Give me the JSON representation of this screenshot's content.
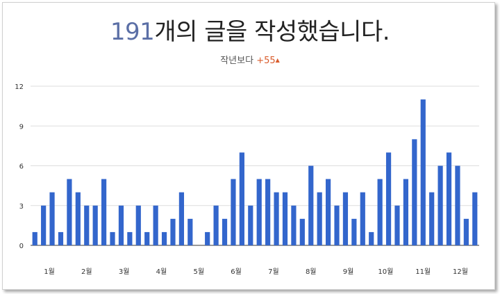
{
  "header": {
    "count": "191",
    "headline_suffix": "개의 글을 작성했습니다.",
    "compare_label": "작년보다",
    "compare_delta": "+55",
    "compare_arrow": "▲"
  },
  "colors": {
    "bar": "#3366cc",
    "grid": "#dddddd",
    "delta": "#d95b2b",
    "count": "#5b6fa6"
  },
  "chart_data": {
    "type": "bar",
    "title": "",
    "xlabel": "",
    "ylabel": "",
    "ylim": [
      0,
      12
    ],
    "yticks": [
      0,
      3,
      6,
      9,
      12
    ],
    "grid": true,
    "x_tick_labels": [
      "1월",
      "2월",
      "3월",
      "4월",
      "5월",
      "6월",
      "7월",
      "8월",
      "9월",
      "10월",
      "11월",
      "12월"
    ],
    "values": [
      1,
      3,
      4,
      1,
      5,
      4,
      3,
      3,
      5,
      1,
      3,
      1,
      3,
      1,
      3,
      1,
      2,
      4,
      2,
      0,
      1,
      3,
      2,
      5,
      7,
      3,
      5,
      5,
      4,
      4,
      3,
      2,
      6,
      4,
      5,
      3,
      4,
      2,
      4,
      1,
      5,
      7,
      3,
      5,
      8,
      11,
      4,
      6,
      7,
      6,
      2,
      4
    ]
  }
}
